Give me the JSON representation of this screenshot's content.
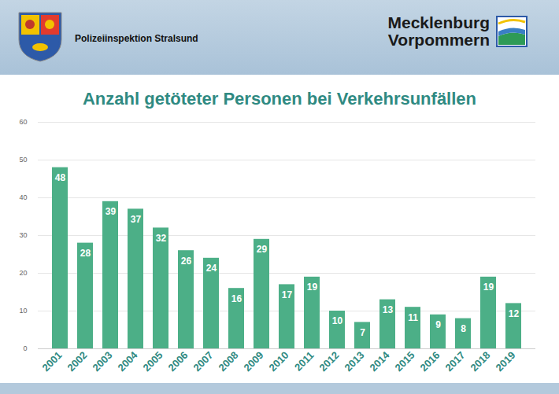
{
  "header": {
    "organization": "Polizeiinspektion Stralsund",
    "logo": [
      "Mecklenburg",
      "Vorpommern"
    ]
  },
  "chart_data": {
    "type": "bar",
    "title": "Anzahl getöteter Personen bei Verkehrsunfällen",
    "categories": [
      "2001",
      "2002",
      "2003",
      "2004",
      "2005",
      "2006",
      "2007",
      "2008",
      "2009",
      "2010",
      "2011",
      "2012",
      "2013",
      "2014",
      "2015",
      "2016",
      "2017",
      "2018",
      "2019"
    ],
    "values": [
      48,
      28,
      39,
      37,
      32,
      26,
      24,
      16,
      29,
      17,
      19,
      10,
      7,
      13,
      11,
      9,
      8,
      19,
      12
    ],
    "color": "#4caf87",
    "ylim": [
      0,
      60
    ],
    "yticks": [
      0,
      10,
      20,
      30,
      40,
      50,
      60
    ],
    "grid": true,
    "data_labels": true
  }
}
